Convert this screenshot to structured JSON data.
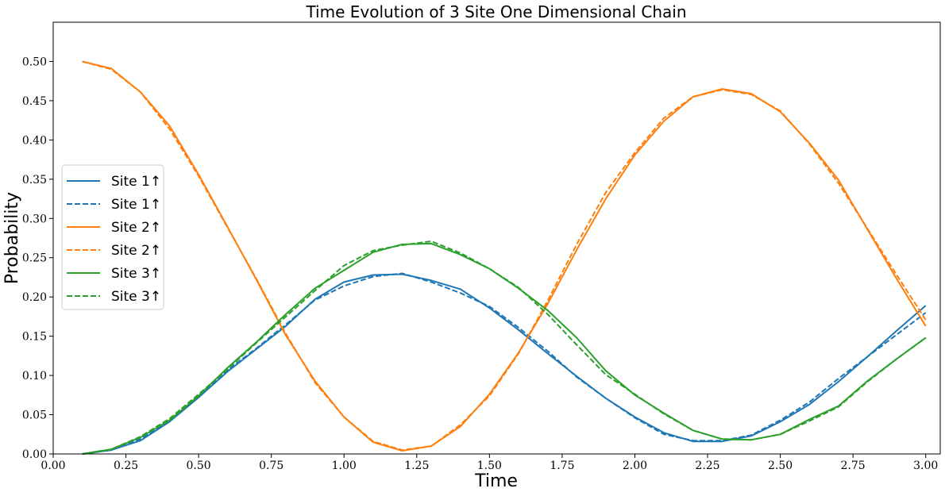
{
  "chart_data": {
    "type": "line",
    "title": "Time Evolution of 3 Site One Dimensional Chain",
    "xlabel": "Time",
    "ylabel": "Probability",
    "xlim": [
      0.0,
      3.05
    ],
    "ylim": [
      0.0,
      0.55
    ],
    "xticks": [
      0.0,
      0.25,
      0.5,
      0.75,
      1.0,
      1.25,
      1.5,
      1.75,
      2.0,
      2.25,
      2.5,
      2.75,
      3.0
    ],
    "xtick_labels": [
      "0.00",
      "0.25",
      "0.50",
      "0.75",
      "1.00",
      "1.25",
      "1.50",
      "1.75",
      "2.00",
      "2.25",
      "2.50",
      "2.75",
      "3.00"
    ],
    "yticks": [
      0.0,
      0.05,
      0.1,
      0.15,
      0.2,
      0.25,
      0.3,
      0.35,
      0.4,
      0.45,
      0.5
    ],
    "ytick_labels": [
      "0.00",
      "0.05",
      "0.10",
      "0.15",
      "0.20",
      "0.25",
      "0.30",
      "0.35",
      "0.40",
      "0.45",
      "0.50"
    ],
    "grid": false,
    "legend_position": "center-left",
    "x": [
      0.1,
      0.2,
      0.3,
      0.4,
      0.5,
      0.6,
      0.7,
      0.8,
      0.9,
      1.0,
      1.1,
      1.2,
      1.3,
      1.4,
      1.5,
      1.6,
      1.7,
      1.8,
      1.9,
      2.0,
      2.1,
      2.2,
      2.3,
      2.4,
      2.5,
      2.6,
      2.7,
      2.8,
      2.9,
      3.0
    ],
    "series": [
      {
        "name": "Site 1↑",
        "color": "#1f77b4",
        "style": "solid",
        "values": [
          0.0,
          0.005,
          0.017,
          0.041,
          0.072,
          0.105,
          0.134,
          0.163,
          0.197,
          0.219,
          0.228,
          0.229,
          0.221,
          0.21,
          0.186,
          0.158,
          0.128,
          0.099,
          0.071,
          0.047,
          0.027,
          0.016,
          0.016,
          0.023,
          0.041,
          0.063,
          0.092,
          0.124,
          0.157,
          0.189
        ]
      },
      {
        "name": "Site 1↑",
        "color": "#1f77b4",
        "style": "dashed",
        "values": [
          0.0,
          0.005,
          0.019,
          0.043,
          0.074,
          0.107,
          0.135,
          0.165,
          0.196,
          0.214,
          0.226,
          0.23,
          0.219,
          0.205,
          0.188,
          0.161,
          0.131,
          0.098,
          0.071,
          0.046,
          0.025,
          0.017,
          0.017,
          0.024,
          0.043,
          0.066,
          0.096,
          0.124,
          0.152,
          0.18
        ]
      },
      {
        "name": "Site 2↑",
        "color": "#ff7f0e",
        "style": "solid",
        "values": [
          0.5,
          0.491,
          0.461,
          0.418,
          0.356,
          0.289,
          0.221,
          0.151,
          0.093,
          0.047,
          0.015,
          0.004,
          0.01,
          0.035,
          0.076,
          0.129,
          0.191,
          0.26,
          0.325,
          0.381,
          0.424,
          0.455,
          0.465,
          0.459,
          0.436,
          0.396,
          0.349,
          0.286,
          0.223,
          0.163
        ]
      },
      {
        "name": "Site 2↑",
        "color": "#ff7f0e",
        "style": "dashed",
        "values": [
          0.5,
          0.49,
          0.461,
          0.414,
          0.354,
          0.288,
          0.222,
          0.153,
          0.091,
          0.047,
          0.016,
          0.005,
          0.01,
          0.037,
          0.074,
          0.128,
          0.195,
          0.267,
          0.333,
          0.384,
          0.428,
          0.455,
          0.464,
          0.458,
          0.437,
          0.395,
          0.345,
          0.287,
          0.228,
          0.171
        ]
      },
      {
        "name": "Site 3↑",
        "color": "#2ca02c",
        "style": "solid",
        "values": [
          0.0,
          0.006,
          0.021,
          0.043,
          0.074,
          0.11,
          0.143,
          0.178,
          0.211,
          0.234,
          0.257,
          0.267,
          0.268,
          0.254,
          0.236,
          0.211,
          0.183,
          0.148,
          0.106,
          0.075,
          0.052,
          0.03,
          0.019,
          0.018,
          0.025,
          0.044,
          0.061,
          0.093,
          0.121,
          0.148
        ]
      },
      {
        "name": "Site 3↑",
        "color": "#2ca02c",
        "style": "dashed",
        "values": [
          0.0,
          0.006,
          0.022,
          0.045,
          0.076,
          0.108,
          0.142,
          0.175,
          0.208,
          0.24,
          0.259,
          0.266,
          0.271,
          0.256,
          0.236,
          0.212,
          0.178,
          0.139,
          0.101,
          0.076,
          0.051,
          0.03,
          0.019,
          0.018,
          0.025,
          0.042,
          0.06,
          0.092,
          0.121,
          0.148
        ]
      }
    ]
  }
}
